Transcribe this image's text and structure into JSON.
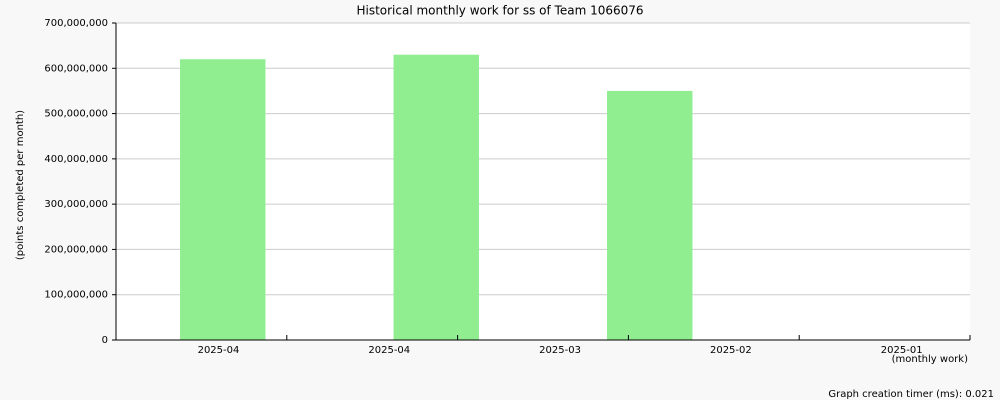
{
  "chart_data": {
    "type": "bar",
    "title": "Historical monthly work for ss of Team 1066076",
    "y_label": "(points completed per month)",
    "x_label": "(monthly work)",
    "footer": "Graph creation timer (ms): 0.021",
    "categories": [
      "2025-04",
      "2025-04",
      "2025-03",
      "2025-02",
      "2025-01"
    ],
    "values": [
      620000000,
      630000000,
      550000000,
      null,
      null
    ],
    "color": "#90ee90",
    "ylim": [
      0,
      700000000
    ],
    "yticks": [
      0,
      {
        "value": 100000000,
        "label": "100,000,000"
      },
      {
        "value": 200000000,
        "label": "200,000,000"
      },
      {
        "value": 300000000,
        "label": "300,000,000"
      },
      {
        "value": 400000000,
        "label": "400,000,000"
      },
      {
        "value": 500000000,
        "label": "500,000,000"
      },
      {
        "value": 600000000,
        "label": "600,000,000"
      },
      {
        "value": 700000000,
        "label": "700,000,000"
      }
    ],
    "grid": true
  }
}
